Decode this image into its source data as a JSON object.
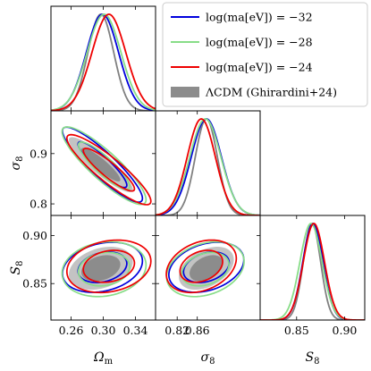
{
  "chart_data": {
    "type": "corner",
    "parameters": [
      {
        "key": "om",
        "label": "Ωm",
        "ticks": [
          0.26,
          0.3,
          0.34
        ],
        "tick_labels": [
          "0.26",
          "0.30",
          "0.34"
        ]
      },
      {
        "key": "s8l",
        "label": "σ8",
        "ticks": [
          0.8,
          0.9
        ],
        "tick_labels": [
          "0.8",
          "0.9"
        ],
        "x_ticks": [
          0.82,
          0.86
        ],
        "x_tick_labels": [
          "0.82",
          "0.86"
        ]
      },
      {
        "key": "S8",
        "label": "S8",
        "ticks": [
          0.85,
          0.9
        ],
        "tick_labels": [
          "0.85",
          "0.90"
        ]
      }
    ],
    "ranges": {
      "om": [
        0.235,
        0.365
      ],
      "s8l": [
        0.777,
        0.985
      ],
      "S8": [
        0.812,
        0.921
      ]
    },
    "legend_placement": "top-right",
    "series": [
      {
        "name": "log(ma[eV]) = −32",
        "color": "#0000dd",
        "style": "line",
        "mean": {
          "om": 0.299,
          "s8l": 0.878,
          "S8": 0.867
        },
        "sd": {
          "om": 0.02,
          "s8l": 0.03,
          "S8": 0.0105
        },
        "corr": {
          "om_s8l": -0.9,
          "om_S8": 0.25,
          "s8l_S8": 0.3
        }
      },
      {
        "name": "log(ma[eV]) = −28",
        "color": "#88dd88",
        "style": "line",
        "mean": {
          "om": 0.301,
          "s8l": 0.876,
          "S8": 0.865
        },
        "sd": {
          "om": 0.021,
          "s8l": 0.031,
          "S8": 0.0115
        },
        "corr": {
          "om_s8l": -0.88,
          "om_S8": 0.15,
          "s8l_S8": 0.28
        }
      },
      {
        "name": "log(ma[eV]) = −24",
        "color": "#ee0000",
        "style": "line",
        "mean": {
          "om": 0.307,
          "s8l": 0.868,
          "S8": 0.868
        },
        "sd": {
          "om": 0.021,
          "s8l": 0.028,
          "S8": 0.011
        },
        "corr": {
          "om_s8l": -0.9,
          "om_S8": 0.2,
          "s8l_S8": 0.3
        }
      },
      {
        "name": "ΛCDM (Ghirardini+24)",
        "color": "#808080",
        "style": "filled",
        "mean": {
          "om": 0.297,
          "s8l": 0.878,
          "S8": 0.866
        },
        "sd": {
          "om": 0.016,
          "s8l": 0.022,
          "S8": 0.009
        },
        "corr": {
          "om_s8l": -0.9,
          "om_S8": 0.3,
          "s8l_S8": 0.4
        }
      }
    ]
  }
}
